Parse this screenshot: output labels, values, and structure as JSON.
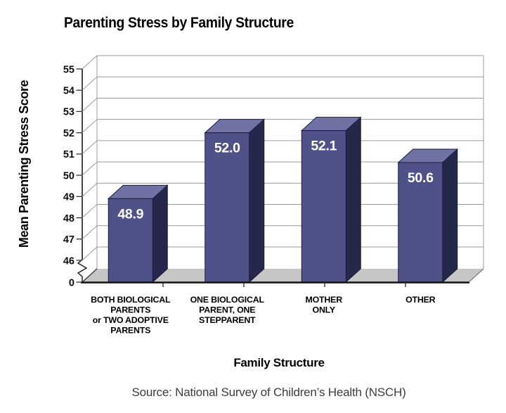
{
  "chart_data": {
    "type": "bar",
    "title": "Parenting Stress by Family Structure",
    "xlabel": "Family Structure",
    "ylabel": "Mean Parenting Stress Score",
    "source": "Source: National Survey of Children’s Health (NSCH)",
    "categories": [
      "BOTH BIOLOGICAL PARENTS or TWO ADOPTIVE PARENTS",
      "ONE BIOLOGICAL PARENT, ONE STEPPARENT",
      "MOTHER ONLY",
      "OTHER"
    ],
    "category_lines": [
      [
        "BOTH BIOLOGICAL",
        "PARENTS",
        "or TWO ADOPTIVE",
        "PARENTS"
      ],
      [
        "ONE BIOLOGICAL",
        "PARENT, ONE",
        "STEPPARENT"
      ],
      [
        "MOTHER",
        "ONLY"
      ],
      [
        "OTHER"
      ]
    ],
    "values": [
      48.9,
      52.0,
      52.1,
      50.6
    ],
    "value_labels": [
      "48.9",
      "52.0",
      "52.1",
      "50.6"
    ],
    "y_ticks": [
      55,
      54,
      53,
      52,
      51,
      50,
      49,
      48,
      47,
      46,
      0
    ],
    "ylim": [
      46,
      55
    ],
    "y_axis_break": true,
    "grid": true,
    "legend_position": "none",
    "style": "3d-bars",
    "colors": {
      "bar_front": "#4f5189",
      "bar_top": "#6f72a3",
      "bar_side": "#25284b",
      "bar_outline": "#1a1d3c",
      "floor": "#c6c6c6",
      "gridline": "#9b9b9b",
      "axis": "#1a1a1a",
      "value_label": "#ffffff",
      "label_text": "#000000",
      "source_text": "#3d3d3d"
    }
  }
}
